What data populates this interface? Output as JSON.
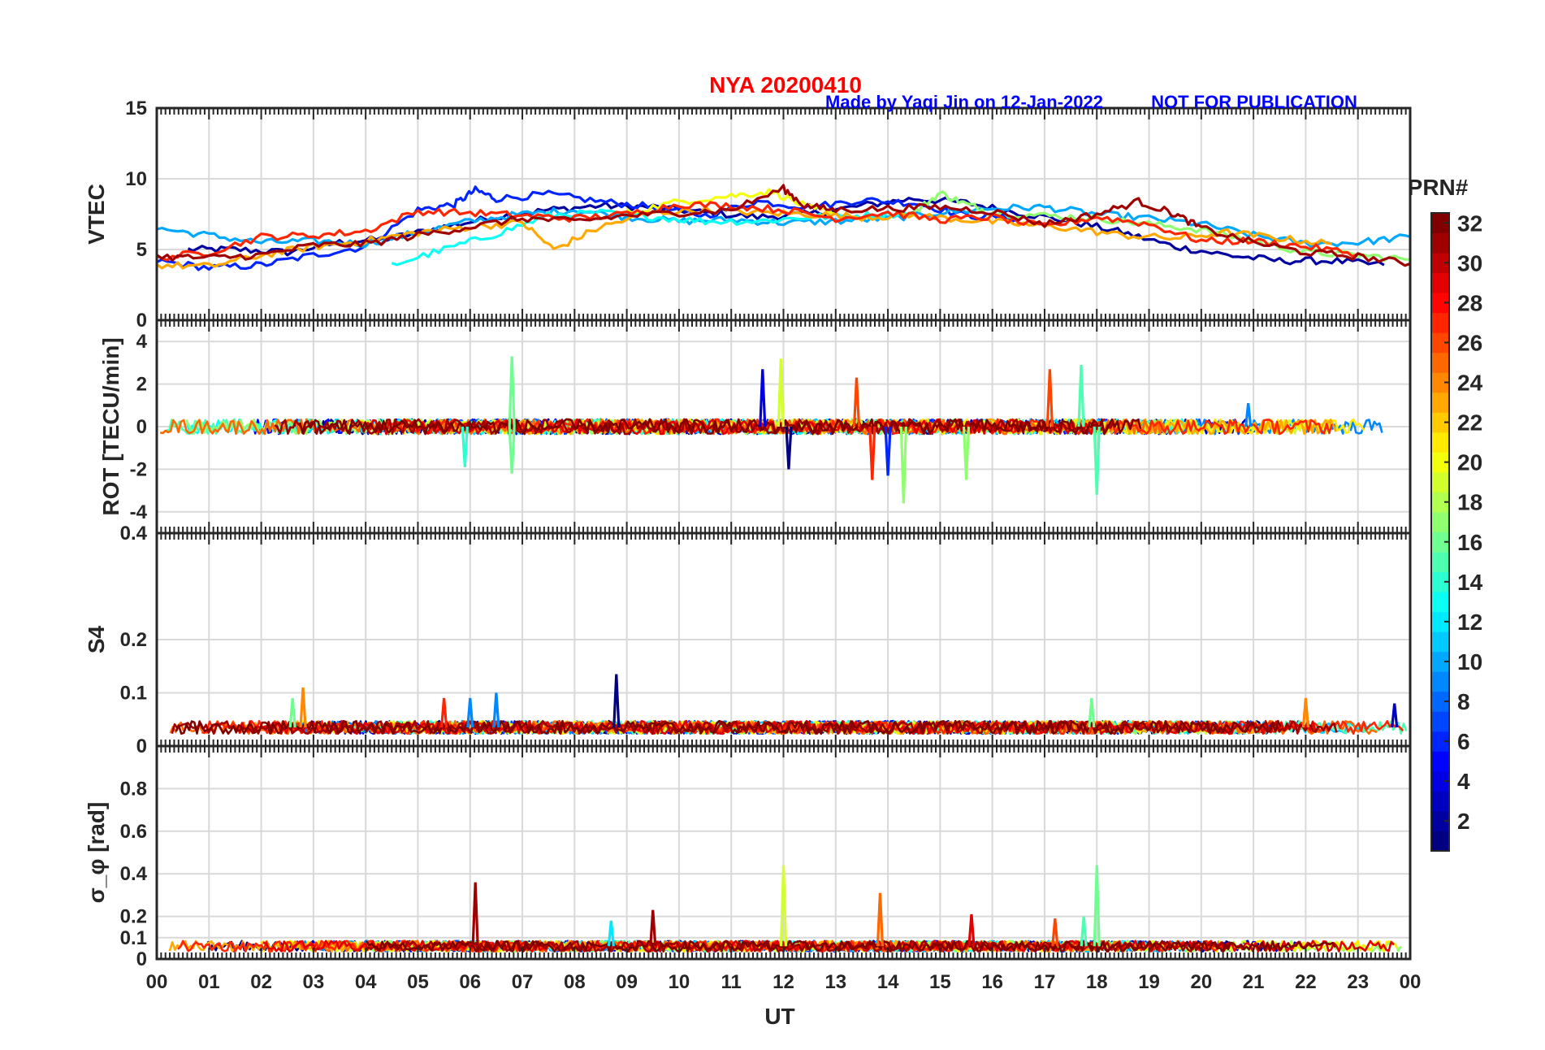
{
  "chart_data": {
    "type": "line",
    "figure": {
      "station_title": "NYA   20200410",
      "credit": "Made by Yaqi Jin on 12-Jan-2022",
      "notice": "NOT FOR PUBLICATION",
      "xlabel": "UT",
      "xticks": [
        "00",
        "01",
        "02",
        "03",
        "04",
        "05",
        "06",
        "07",
        "08",
        "09",
        "10",
        "11",
        "12",
        "13",
        "14",
        "15",
        "16",
        "17",
        "18",
        "19",
        "20",
        "21",
        "22",
        "23",
        "00"
      ],
      "xlim": [
        0,
        24
      ],
      "grid": true
    },
    "colorbar": {
      "title": "PRN#",
      "range": [
        1,
        32
      ],
      "ticks": [
        "2",
        "4",
        "6",
        "8",
        "10",
        "12",
        "14",
        "16",
        "18",
        "20",
        "22",
        "24",
        "26",
        "28",
        "30",
        "32"
      ],
      "colormap": "jet"
    },
    "panels": [
      {
        "id": "vtec",
        "ylabel": "VTEC",
        "ylim": [
          0,
          15
        ],
        "yticks": [
          "0",
          "5",
          "10",
          "15"
        ],
        "series": [
          {
            "prn": 2,
            "x": [
              0.6,
              1.5,
              2.5,
              3.5,
              4.5,
              5.5,
              6.5,
              7.5,
              8.5,
              9.5,
              10.5,
              11.5,
              12.5,
              13.5,
              14.5,
              15.5,
              16.5,
              17.5,
              18.5,
              19.5,
              20.5,
              21.5,
              22.5,
              23.5
            ],
            "y": [
              5.0,
              5.0,
              4.8,
              5.5,
              5.8,
              6.6,
              7.3,
              7.8,
              8.1,
              8.0,
              7.6,
              7.3,
              7.5,
              8.1,
              8.6,
              8.3,
              7.6,
              7.0,
              6.2,
              5.2,
              4.6,
              4.2,
              4.2,
              3.9
            ]
          },
          {
            "prn": 6,
            "x": [
              0.0,
              1.0,
              2.0,
              3.0,
              4.0,
              5.0,
              5.7,
              6.1,
              6.5,
              7.5,
              8.5,
              9.5,
              10.5,
              11.5,
              12.5,
              13.5,
              14.5,
              15.5,
              16.5
            ],
            "y": [
              4.2,
              3.7,
              3.9,
              4.6,
              5.2,
              7.8,
              8.2,
              9.2,
              8.6,
              8.9,
              8.4,
              8.0,
              7.4,
              8.4,
              8.0,
              8.5,
              8.3,
              7.4,
              7.2
            ]
          },
          {
            "prn": 10,
            "x": [
              0.0,
              1.0,
              2.0,
              3.0,
              4.0,
              5.0,
              6.0,
              7.0,
              8.0,
              9.0,
              10.0,
              11.0,
              12.0,
              13.0,
              14.0,
              15.0,
              16.0,
              17.0,
              18.0,
              19.0,
              20.0,
              21.0,
              22.0,
              23.0,
              24.0
            ],
            "y": [
              6.5,
              6.0,
              5.5,
              5.6,
              5.4,
              6.2,
              7.0,
              7.5,
              7.8,
              7.3,
              7.0,
              7.1,
              6.9,
              7.0,
              7.2,
              7.6,
              7.9,
              8.0,
              7.5,
              7.2,
              6.8,
              6.0,
              5.4,
              5.5,
              5.9
            ]
          },
          {
            "prn": 13,
            "x": [
              4.5,
              5.5,
              6.5,
              7.5,
              8.5,
              9.5,
              10.5,
              11.5,
              12.5,
              13.5,
              14.5
            ],
            "y": [
              3.9,
              5.0,
              6.1,
              7.4,
              7.6,
              7.3,
              7.0,
              7.0,
              7.3,
              7.4,
              7.6
            ]
          },
          {
            "prn": 17,
            "x": [
              14.5,
              15.0,
              15.5,
              16.0,
              17.0,
              18.0,
              19.0,
              20.0,
              21.0,
              22.0,
              23.0,
              24.0
            ],
            "y": [
              7.6,
              9.0,
              8.2,
              7.6,
              7.4,
              7.2,
              6.8,
              6.4,
              5.6,
              4.8,
              4.6,
              4.3
            ]
          },
          {
            "prn": 20,
            "x": [
              9.0,
              10.0,
              11.0,
              11.8,
              12.5,
              13.0
            ],
            "y": [
              7.6,
              8.4,
              8.8,
              9.1,
              7.9,
              7.6
            ]
          },
          {
            "prn": 23,
            "x": [
              0.0,
              1.0,
              2.0,
              3.0,
              4.0,
              5.0,
              6.0,
              7.0,
              7.6,
              8.5,
              9.5,
              10.5,
              11.5,
              12.5,
              13.5,
              14.5,
              15.5,
              16.5,
              17.5,
              18.5,
              19.5,
              20.5,
              21.5,
              22.5
            ],
            "y": [
              3.9,
              3.8,
              4.6,
              5.2,
              5.6,
              6.2,
              6.6,
              6.9,
              5.0,
              6.6,
              7.6,
              7.8,
              7.6,
              7.5,
              7.3,
              7.4,
              7.1,
              6.8,
              6.5,
              6.0,
              5.8,
              6.2,
              5.8,
              5.4
            ]
          },
          {
            "prn": 27,
            "x": [
              0.0,
              1.0,
              2.0,
              3.0,
              4.0,
              5.0,
              6.0,
              7.0,
              8.0,
              9.0,
              10.0,
              11.0,
              12.0,
              13.0,
              14.0,
              15.0,
              16.0,
              17.0,
              18.0,
              19.0,
              20.0,
              21.0,
              22.0,
              23.0
            ],
            "y": [
              4.4,
              4.8,
              5.9,
              6.0,
              6.3,
              7.7,
              7.6,
              7.4,
              7.2,
              7.5,
              8.2,
              8.1,
              7.8,
              7.2,
              7.6,
              7.1,
              7.3,
              6.6,
              7.3,
              6.8,
              5.6,
              5.6,
              5.2,
              4.7
            ]
          },
          {
            "prn": 31,
            "x": [
              0.0,
              1.0,
              2.0,
              3.0,
              4.0,
              5.0,
              6.0,
              7.0,
              8.0,
              9.0,
              10.0,
              11.0,
              12.0,
              12.4,
              13.0,
              14.0,
              15.0,
              16.0,
              17.0,
              18.0,
              18.8,
              19.5,
              20.0,
              21.0,
              22.0,
              23.0,
              24.0
            ],
            "y": [
              4.5,
              4.4,
              4.6,
              5.3,
              5.4,
              6.0,
              6.6,
              7.2,
              7.0,
              7.4,
              7.6,
              7.8,
              9.3,
              8.1,
              7.8,
              7.9,
              8.0,
              7.7,
              6.8,
              7.5,
              8.4,
              7.5,
              6.5,
              5.5,
              4.8,
              4.5,
              4.0
            ]
          }
        ]
      },
      {
        "id": "rot",
        "ylabel": "ROT [TECU/min]",
        "ylim": [
          -5,
          5
        ],
        "yticks": [
          "-4",
          "-2",
          "0",
          "2",
          "4"
        ],
        "spikes": [
          {
            "prn": 16,
            "x": 6.8,
            "y": 3.3
          },
          {
            "prn": 16,
            "x": 6.8,
            "y": -2.2
          },
          {
            "prn": 14,
            "x": 5.9,
            "y": -1.9
          },
          {
            "prn": 19,
            "x": 11.95,
            "y": 3.2
          },
          {
            "prn": 4,
            "x": 11.6,
            "y": 2.7
          },
          {
            "prn": 1,
            "x": 12.1,
            "y": -2.0
          },
          {
            "prn": 26,
            "x": 13.4,
            "y": 2.3
          },
          {
            "prn": 27,
            "x": 13.7,
            "y": -2.5
          },
          {
            "prn": 6,
            "x": 14.0,
            "y": -2.3
          },
          {
            "prn": 17,
            "x": 14.3,
            "y": -3.6
          },
          {
            "prn": 17,
            "x": 15.5,
            "y": -2.5
          },
          {
            "prn": 26,
            "x": 17.1,
            "y": 2.7
          },
          {
            "prn": 15,
            "x": 17.7,
            "y": 2.9
          },
          {
            "prn": 15,
            "x": 18.0,
            "y": -3.2
          },
          {
            "prn": 9,
            "x": 20.9,
            "y": 1.1
          }
        ]
      },
      {
        "id": "s4",
        "ylabel": "S4",
        "ylim": [
          0,
          0.4
        ],
        "yticks": [
          "0",
          "0.1",
          "0.2",
          "0.4"
        ],
        "spikes": [
          {
            "prn": 24,
            "x": 2.8,
            "y": 0.11
          },
          {
            "prn": 16,
            "x": 2.6,
            "y": 0.09
          },
          {
            "prn": 1,
            "x": 8.8,
            "y": 0.135
          },
          {
            "prn": 9,
            "x": 6.5,
            "y": 0.1
          },
          {
            "prn": 9,
            "x": 6.0,
            "y": 0.09
          },
          {
            "prn": 27,
            "x": 5.5,
            "y": 0.09
          },
          {
            "prn": 16,
            "x": 17.9,
            "y": 0.09
          },
          {
            "prn": 24,
            "x": 22.0,
            "y": 0.09
          },
          {
            "prn": 3,
            "x": 23.7,
            "y": 0.08
          }
        ]
      },
      {
        "id": "sigma_phi",
        "ylabel": "σ_φ [rad]",
        "ylim": [
          0,
          1
        ],
        "yticks": [
          "0",
          "0.1",
          "0.2",
          "0.4",
          "0.6",
          "0.8"
        ],
        "spikes": [
          {
            "prn": 31,
            "x": 6.1,
            "y": 0.36
          },
          {
            "prn": 19,
            "x": 12.0,
            "y": 0.44
          },
          {
            "prn": 25,
            "x": 13.85,
            "y": 0.31
          },
          {
            "prn": 29,
            "x": 15.6,
            "y": 0.21
          },
          {
            "prn": 26,
            "x": 17.2,
            "y": 0.19
          },
          {
            "prn": 16,
            "x": 18.0,
            "y": 0.44
          },
          {
            "prn": 15,
            "x": 17.75,
            "y": 0.2
          },
          {
            "prn": 31,
            "x": 9.5,
            "y": 0.23
          },
          {
            "prn": 12,
            "x": 8.7,
            "y": 0.18
          }
        ]
      }
    ]
  }
}
